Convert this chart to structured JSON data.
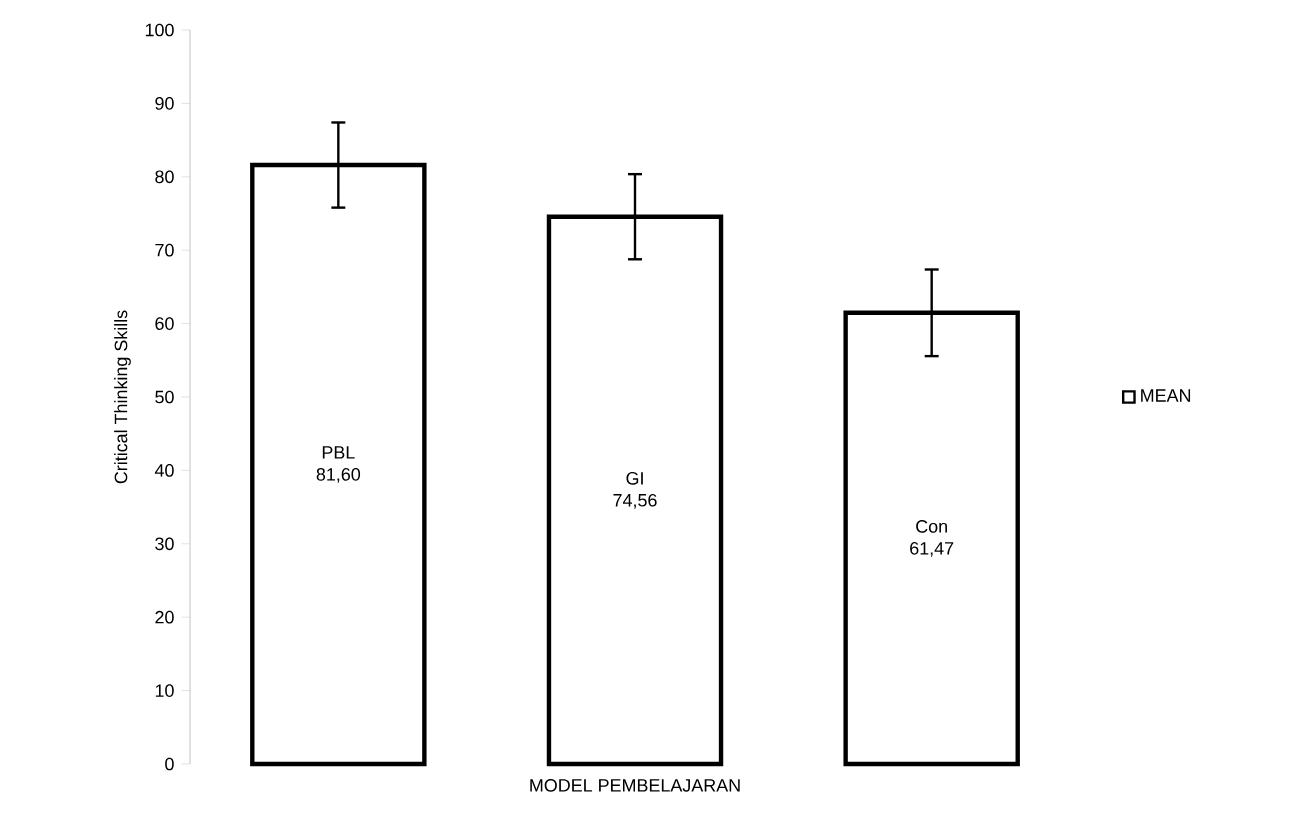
{
  "chart_data": {
    "type": "bar",
    "ylabel": "Critical Thinking Skills",
    "xlabel": "MODEL PEMBELAJARAN",
    "categories": [
      "PBL",
      "GI",
      "Con"
    ],
    "series": [
      {
        "name": "MEAN",
        "color": "#ffffff",
        "values": [
          81.6,
          74.56,
          61.47
        ],
        "value_labels": [
          "81,60",
          "74,56",
          "61,47"
        ],
        "errors": [
          5.8,
          5.8,
          5.9
        ]
      }
    ],
    "ylim": [
      0,
      100
    ],
    "yticks": [
      0,
      10,
      20,
      30,
      40,
      50,
      60,
      70,
      80,
      90,
      100
    ],
    "grid": false,
    "legend": "right"
  }
}
